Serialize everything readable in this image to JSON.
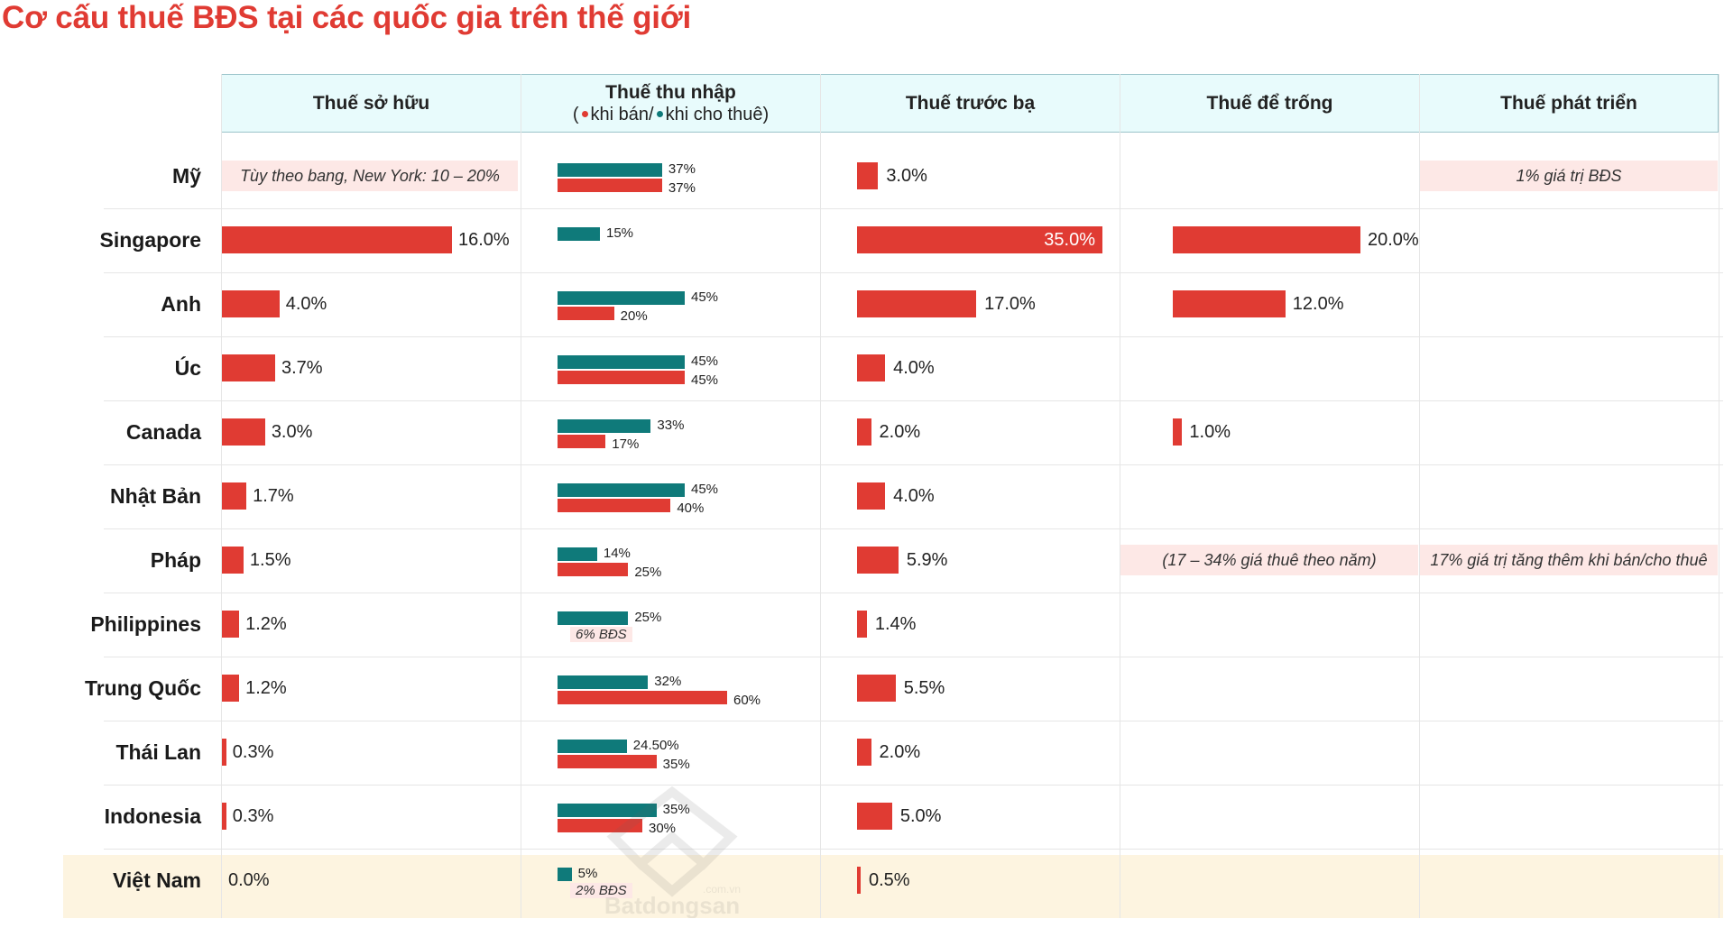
{
  "title": "Cơ cấu thuế BĐS tại các quốc gia trên thế giới",
  "headers": {
    "ownership": "Thuế sở hữu",
    "income": "Thuế thu nhập",
    "income_sub_open": "(",
    "income_sub_sell": "khi bán/",
    "income_sub_rent": "khi cho thuê)",
    "registration": "Thuế trước bạ",
    "vacancy": "Thuế để trống",
    "development": "Thuế phát triển"
  },
  "colors": {
    "sell": "#e03b33",
    "rent": "#0f7a7a",
    "note_bg": "#fde8e6",
    "header_bg": "#e8fbfc",
    "highlight_row": "#fdf4e0"
  },
  "watermark": {
    "brand": "Batdongsan",
    "domain": ".com.vn"
  },
  "chart_data": {
    "type": "bar",
    "categories": [
      "Mỹ",
      "Singapore",
      "Anh",
      "Úc",
      "Canada",
      "Nhật Bản",
      "Pháp",
      "Philippines",
      "Trung Quốc",
      "Thái Lan",
      "Indonesia",
      "Việt Nam"
    ],
    "ownership": {
      "values": [
        null,
        16.0,
        4.0,
        3.7,
        3.0,
        1.7,
        1.5,
        1.2,
        1.2,
        0.3,
        0.3,
        0.0
      ],
      "labels": [
        "",
        "16.0%",
        "4.0%",
        "3.7%",
        "3.0%",
        "1.7%",
        "1.5%",
        "1.2%",
        "1.2%",
        "0.3%",
        "0.3%",
        "0.0%"
      ],
      "notes": [
        "Tùy theo bang, New York: 10 – 20%",
        "",
        "",
        "",
        "",
        "",
        "",
        "",
        "",
        "",
        "",
        ""
      ]
    },
    "income": {
      "rent_values": [
        37,
        15,
        45,
        45,
        33,
        45,
        14,
        25,
        32,
        24.5,
        35,
        5
      ],
      "rent_labels": [
        "37%",
        "15%",
        "45%",
        "45%",
        "33%",
        "45%",
        "14%",
        "25%",
        "32%",
        "24.50%",
        "35%",
        "5%"
      ],
      "sell_values": [
        37,
        null,
        20,
        45,
        17,
        40,
        25,
        null,
        60,
        35,
        30,
        null
      ],
      "sell_labels": [
        "37%",
        "",
        "20%",
        "45%",
        "17%",
        "40%",
        "25%",
        "",
        "60%",
        "35%",
        "30%",
        ""
      ],
      "sell_notes": [
        "",
        "",
        "",
        "",
        "",
        "",
        "",
        "6% BĐS",
        "",
        "",
        "",
        "2% BĐS"
      ]
    },
    "registration": {
      "values": [
        3.0,
        35.0,
        17.0,
        4.0,
        2.0,
        4.0,
        5.9,
        1.4,
        5.5,
        2.0,
        5.0,
        0.5
      ],
      "labels": [
        "3.0%",
        "35.0%",
        "17.0%",
        "4.0%",
        "2.0%",
        "4.0%",
        "5.9%",
        "1.4%",
        "5.5%",
        "2.0%",
        "5.0%",
        "0.5%"
      ]
    },
    "vacancy": {
      "values": [
        null,
        20.0,
        12.0,
        null,
        1.0,
        null,
        null,
        null,
        null,
        null,
        null,
        null
      ],
      "labels": [
        "",
        "20.0%",
        "12.0%",
        "",
        "1.0%",
        "",
        "",
        "",
        "",
        "",
        "",
        ""
      ],
      "notes": [
        "",
        "",
        "",
        "",
        "",
        "",
        "(17 – 34% giá thuê theo năm)",
        "",
        "",
        "",
        "",
        ""
      ]
    },
    "development": {
      "notes": [
        "1% giá trị BĐS",
        "",
        "",
        "",
        "",
        "",
        "17% giá trị tăng thêm khi bán/cho thuê",
        "",
        "",
        "",
        "",
        ""
      ]
    }
  }
}
